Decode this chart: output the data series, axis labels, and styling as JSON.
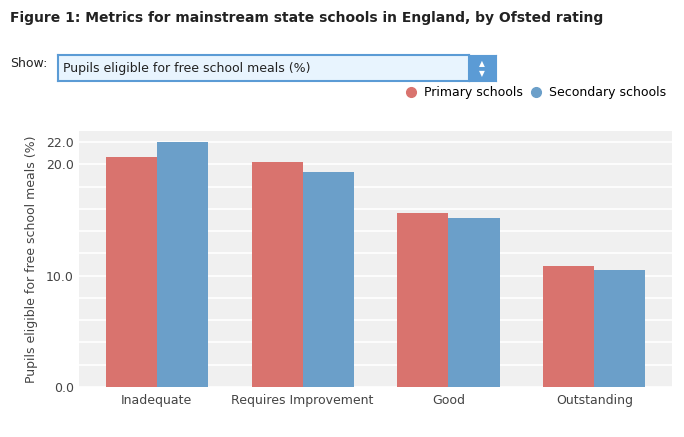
{
  "title": "Figure 1: Metrics for mainstream state schools in England, by Ofsted rating",
  "show_label": "Show:",
  "show_value": "Pupils eligible for free school meals (%)",
  "categories": [
    "Inadequate",
    "Requires Improvement",
    "Good",
    "Outstanding"
  ],
  "primary_values": [
    20.7,
    20.2,
    15.6,
    10.9
  ],
  "secondary_values": [
    22.0,
    19.3,
    15.2,
    10.5
  ],
  "primary_color": "#d9736e",
  "secondary_color": "#6b9fc9",
  "primary_label": "Primary schools",
  "secondary_label": "Secondary schools",
  "ylabel": "Pupils eligible for free school meals (%)",
  "ylim": [
    0,
    23
  ],
  "yticks": [
    0.0,
    2.0,
    4.0,
    6.0,
    8.0,
    10.0,
    12.0,
    14.0,
    16.0,
    18.0,
    20.0,
    22.0
  ],
  "ytick_labels": [
    "0.0",
    "",
    "",
    "",
    "",
    "10.0",
    "",
    "",
    "",
    "",
    "20.0",
    "22.0"
  ],
  "background_color": "#ffffff",
  "plot_bg_color": "#f0f0f0",
  "bar_width": 0.35,
  "title_fontsize": 10,
  "axis_fontsize": 9,
  "tick_fontsize": 9,
  "legend_fontsize": 9,
  "grid_color": "#ffffff",
  "dropdown_fill": "#e8f4fe",
  "dropdown_border": "#5b9bd5"
}
